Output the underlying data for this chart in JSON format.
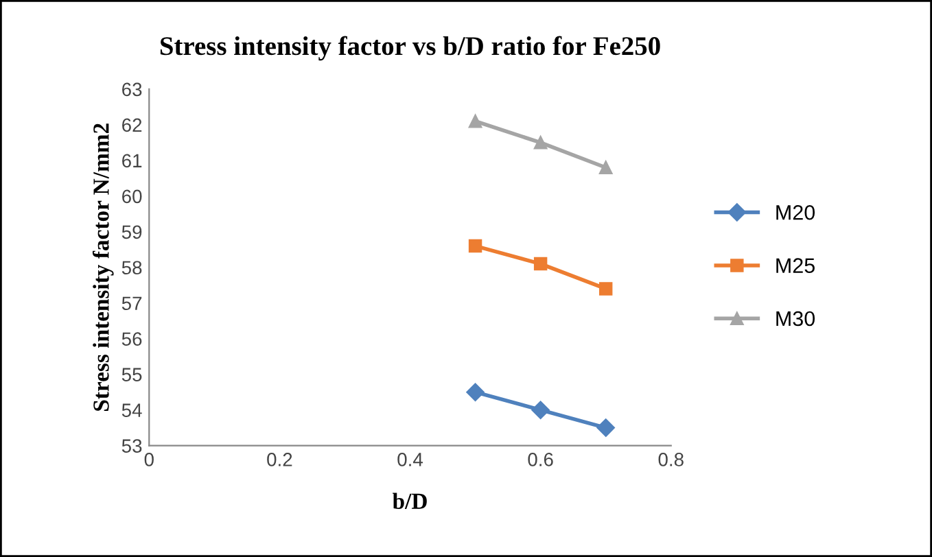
{
  "chart_data": {
    "type": "line",
    "title": "Stress intensity factor vs b/D ratio for Fe250",
    "xlabel": "b/D",
    "ylabel": "Stress intensity factor N/mm2",
    "x": [
      0.5,
      0.6,
      0.7
    ],
    "series": [
      {
        "name": "M20",
        "color": "#4f81bd",
        "marker": "diamond",
        "values": [
          54.5,
          54.0,
          53.5
        ]
      },
      {
        "name": "M25",
        "color": "#ed7d31",
        "marker": "square",
        "values": [
          58.6,
          58.1,
          57.4
        ]
      },
      {
        "name": "M30",
        "color": "#a5a5a5",
        "marker": "triangle",
        "values": [
          62.1,
          61.5,
          60.8
        ]
      }
    ],
    "xlim": [
      0,
      0.8
    ],
    "xticks": [
      0,
      0.2,
      0.4,
      0.6,
      0.8
    ],
    "ylim": [
      53,
      63
    ],
    "yticks": [
      53,
      54,
      55,
      56,
      57,
      58,
      59,
      60,
      61,
      62,
      63
    ],
    "grid": false,
    "legend": "right",
    "line_style": "solid"
  }
}
